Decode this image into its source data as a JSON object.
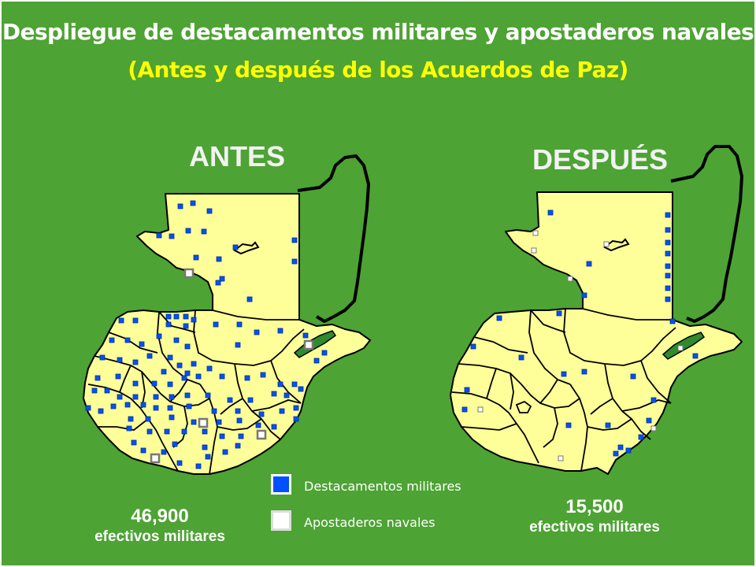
{
  "title": "Despliegue de destacamentos militares y apostaderos navales",
  "subtitle": "(Antes y después de los Acuerdos de Paz)",
  "before": {
    "label": "ANTES",
    "count": "46,900",
    "count_text": "efectivos militares"
  },
  "after": {
    "label": "DESPUÉS",
    "count": "15,500",
    "count_text": "efectivos militares"
  },
  "legend": {
    "military": {
      "label": "Destacamentos militares",
      "color": "#0050ff"
    },
    "naval": {
      "label": "Apostaderos navales",
      "color": "#ffffff"
    }
  },
  "colors": {
    "background": "#4da333",
    "land": "#ffff99",
    "title": "#ffffff",
    "subtitle": "#ffff00"
  }
}
